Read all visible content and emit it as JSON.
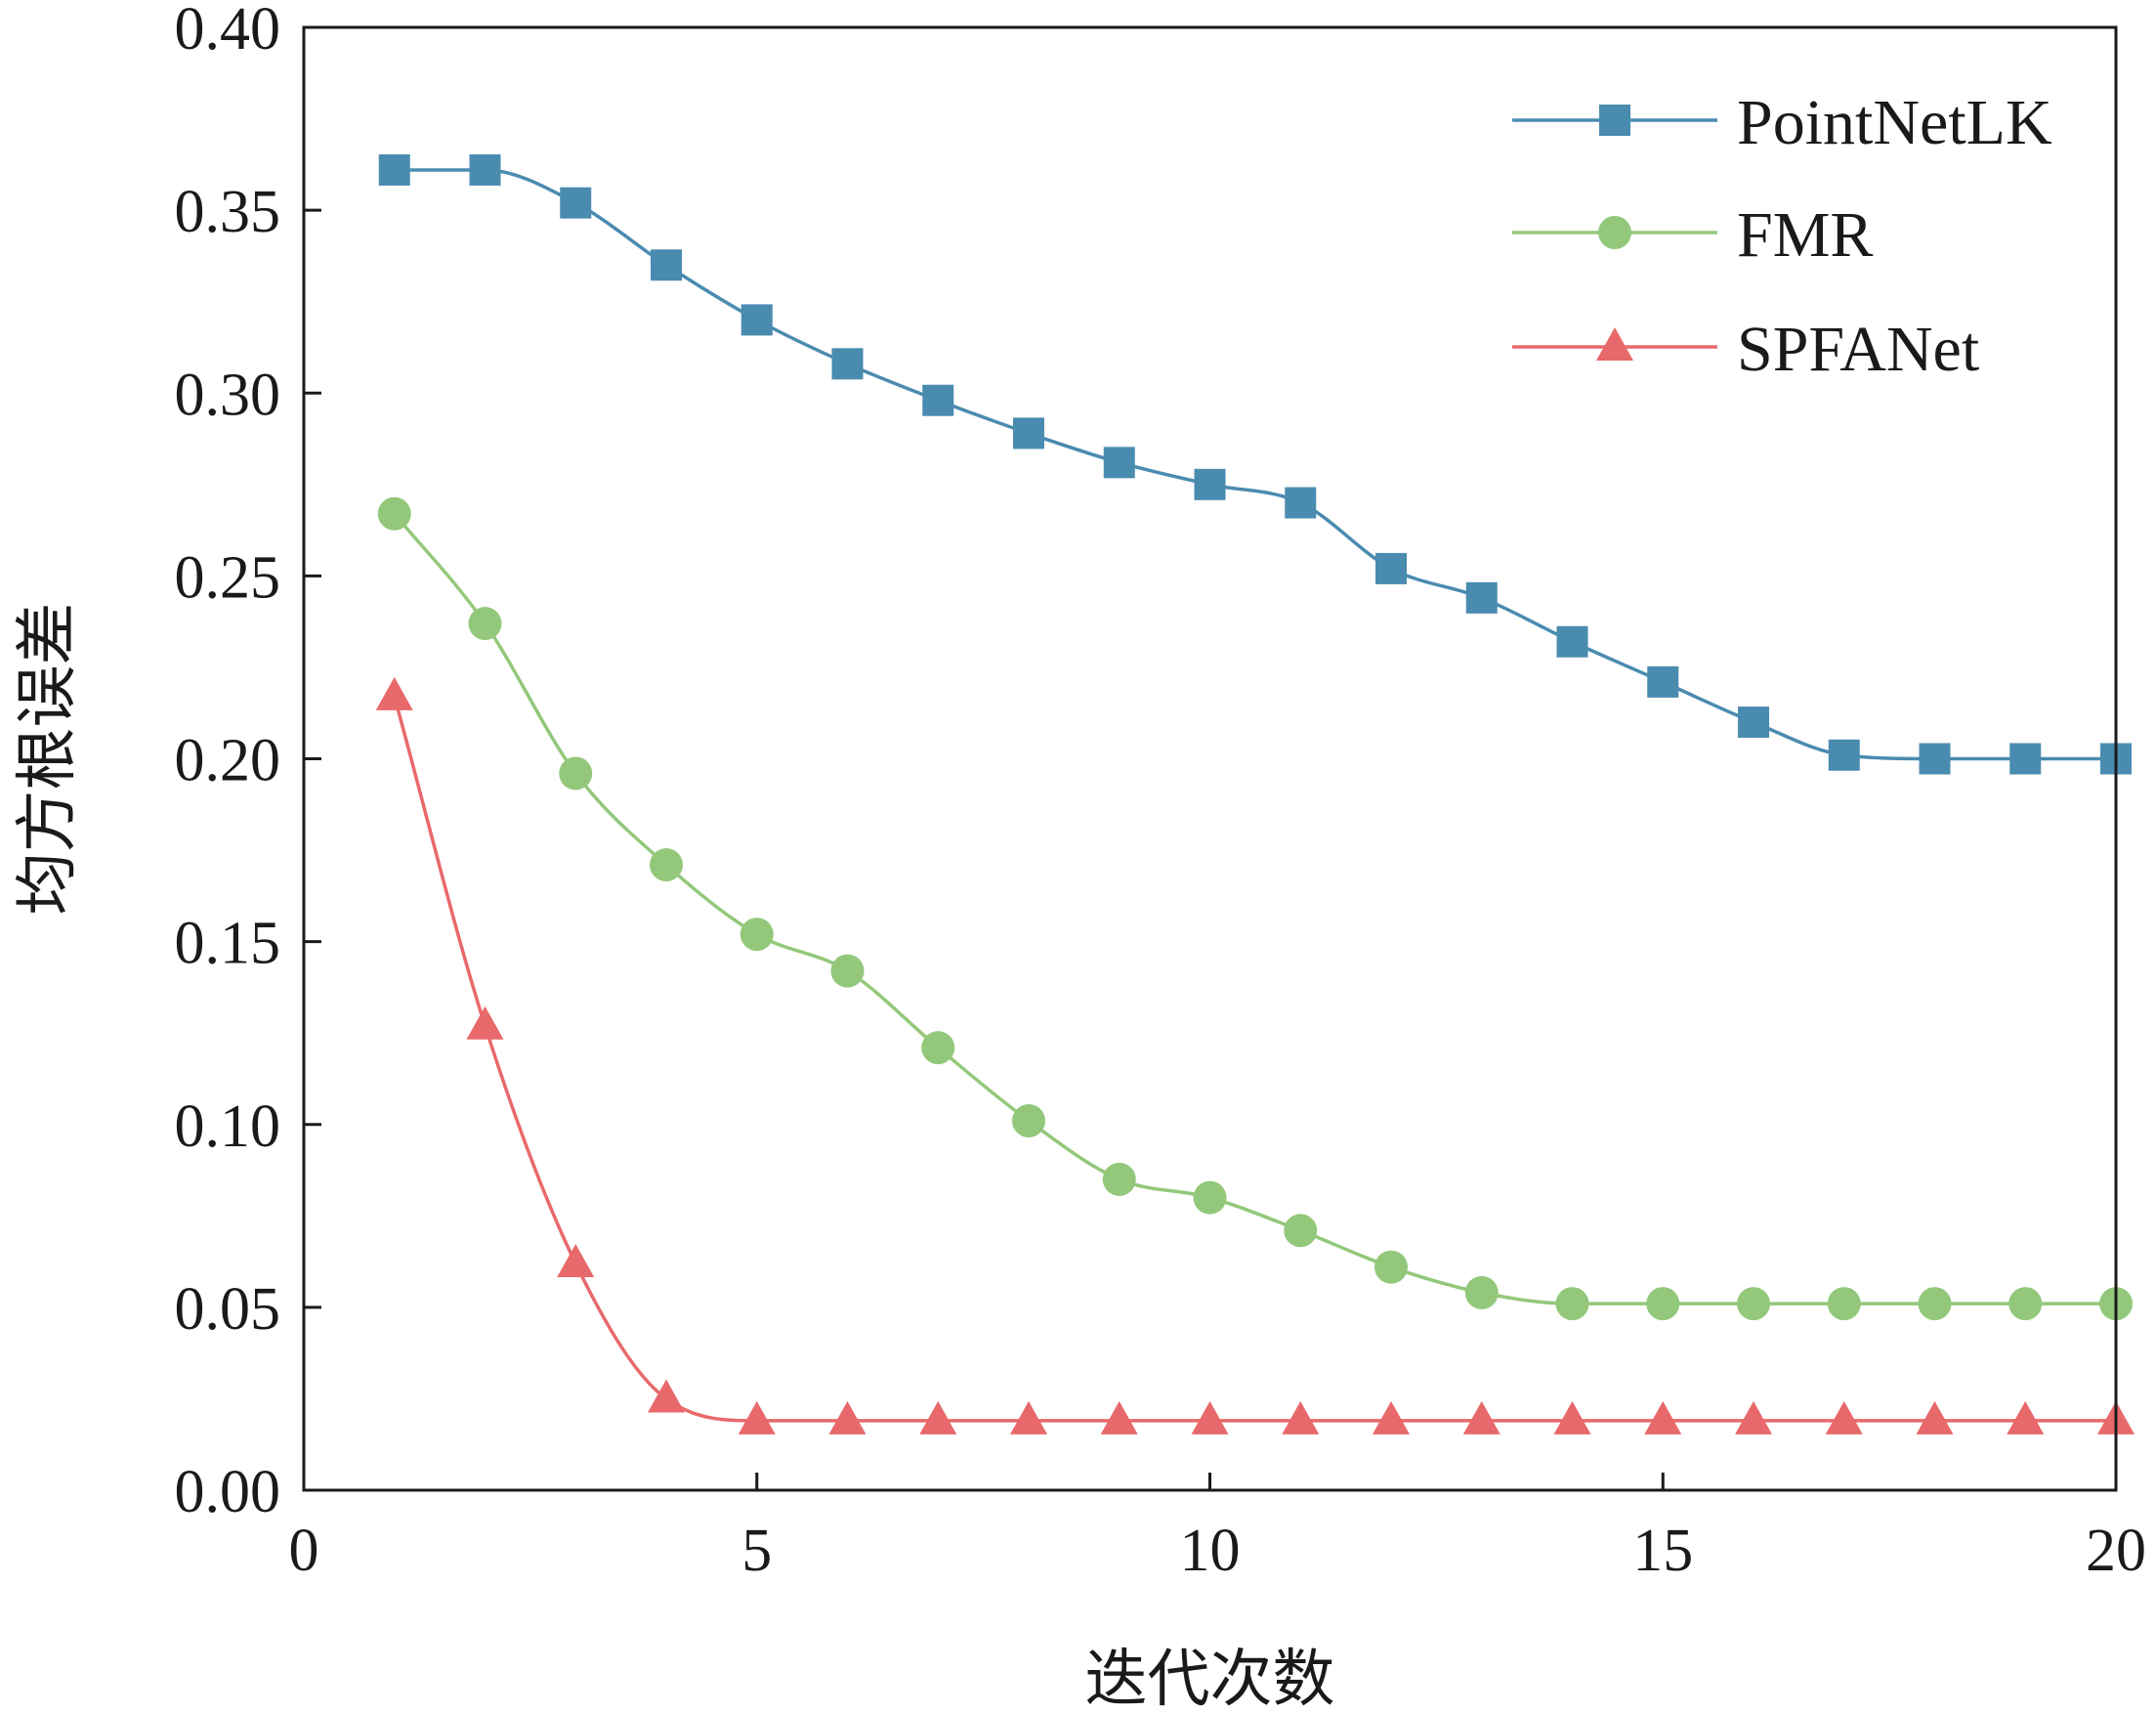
{
  "chart_data": {
    "type": "line",
    "xlabel": "迭代次数",
    "ylabel": "均方根误差",
    "xlim": [
      0,
      20
    ],
    "ylim": [
      0,
      0.4
    ],
    "xticks": [
      0,
      5,
      10,
      15,
      20
    ],
    "xtick_labels": [
      "0",
      "5",
      "10",
      "15",
      "20"
    ],
    "yticks": [
      0,
      0.05,
      0.1,
      0.15,
      0.2,
      0.25,
      0.3,
      0.35,
      0.4
    ],
    "ytick_labels": [
      "0.00",
      "0.05",
      "0.10",
      "0.15",
      "0.20",
      "0.25",
      "0.30",
      "0.35",
      "0.40"
    ],
    "grid": false,
    "legend_position": "top-right",
    "x": [
      1,
      2,
      3,
      4,
      5,
      6,
      7,
      8,
      9,
      10,
      11,
      12,
      13,
      14,
      15,
      16,
      17,
      18,
      19,
      20
    ],
    "series": [
      {
        "name": "PointNetLK",
        "color": "#4a8bb0",
        "marker": "square",
        "values": [
          0.361,
          0.361,
          0.352,
          0.335,
          0.32,
          0.308,
          0.298,
          0.289,
          0.281,
          0.275,
          0.27,
          0.252,
          0.244,
          0.232,
          0.221,
          0.21,
          0.201,
          0.2,
          0.2,
          0.2
        ]
      },
      {
        "name": "FMR",
        "color": "#93c87a",
        "marker": "circle",
        "values": [
          0.267,
          0.237,
          0.196,
          0.171,
          0.152,
          0.142,
          0.121,
          0.101,
          0.085,
          0.08,
          0.071,
          0.061,
          0.054,
          0.051,
          0.051,
          0.051,
          0.051,
          0.051,
          0.051,
          0.051
        ]
      },
      {
        "name": "SPFANet",
        "color": "#e8696b",
        "marker": "triangle",
        "values": [
          0.217,
          0.127,
          0.062,
          0.025,
          0.019,
          0.019,
          0.019,
          0.019,
          0.019,
          0.019,
          0.019,
          0.019,
          0.019,
          0.019,
          0.019,
          0.019,
          0.019,
          0.019,
          0.019,
          0.019
        ]
      }
    ]
  }
}
